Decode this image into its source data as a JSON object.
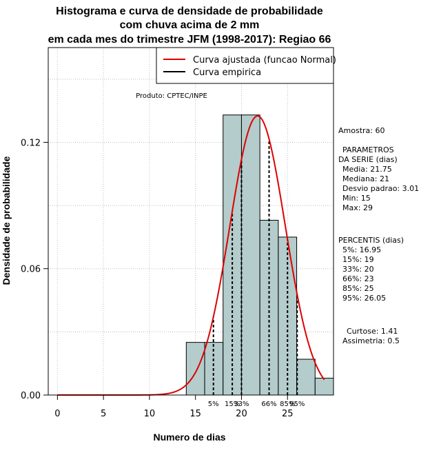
{
  "chart_data": {
    "type": "bar",
    "title_lines": [
      "Histograma e curva de densidade de probabilidade",
      "com chuva acima de 2 mm",
      "em cada mes do trimestre JFM (1998-2017): Regiao 66"
    ],
    "xlabel": "Numero de dias",
    "ylabel": "Densidade de probabilidade",
    "xlim": [
      -1,
      30
    ],
    "ylim": [
      0,
      0.165
    ],
    "xticks": [
      0,
      5,
      10,
      15,
      20,
      25
    ],
    "yticks": [
      0.0,
      0.06,
      0.12
    ],
    "ytick_labels": [
      "0.00",
      "0.06",
      "0.12"
    ],
    "grid": true,
    "legend_position": "top-right",
    "bins": [
      {
        "start": 14,
        "end": 16,
        "density": 0.025
      },
      {
        "start": 16,
        "end": 18,
        "density": 0.025
      },
      {
        "start": 18,
        "end": 20,
        "density": 0.133
      },
      {
        "start": 20,
        "end": 22,
        "density": 0.133
      },
      {
        "start": 22,
        "end": 24,
        "density": 0.083
      },
      {
        "start": 24,
        "end": 26,
        "density": 0.075
      },
      {
        "start": 26,
        "end": 28,
        "density": 0.017
      },
      {
        "start": 28,
        "end": 30,
        "density": 0.008
      }
    ],
    "series": [
      {
        "name": "Curva ajustada (funcao Normal)",
        "color": "#dd0000",
        "mean": 21.75,
        "sd": 3.01,
        "x_range": [
          0,
          29
        ]
      },
      {
        "name": "Curva empirica",
        "color": "#000000"
      }
    ],
    "percentile_lines": [
      {
        "label": "5%",
        "x": 16.95
      },
      {
        "label": "15%",
        "x": 19
      },
      {
        "label": "33%",
        "x": 20
      },
      {
        "label": "66%",
        "x": 23
      },
      {
        "label": "85%",
        "x": 25
      },
      {
        "label": "95%",
        "x": 26.05
      }
    ],
    "bar_color": "#b4cccb",
    "annotation": "Produto: CPTEC/INPE"
  },
  "stats": {
    "amostra": "Amostra: 60",
    "parametros_title_1": "PARAMETROS",
    "parametros_title_2": "DA SERIE (dias)",
    "media": "Media: 21.75",
    "mediana": "Mediana: 21",
    "desvio": "Desvio padrao: 3.01",
    "min": "Min: 15",
    "max": "Max: 29",
    "percentis_title": "PERCENTIS (dias)",
    "p5": "5%: 16.95",
    "p15": "15%: 19",
    "p33": "33%: 20",
    "p66": "66%: 23",
    "p85": "85%: 25",
    "p95": "95%: 26.05",
    "curtose": "Curtose: 1.41",
    "assimetria": "Assimetria: 0.5"
  }
}
